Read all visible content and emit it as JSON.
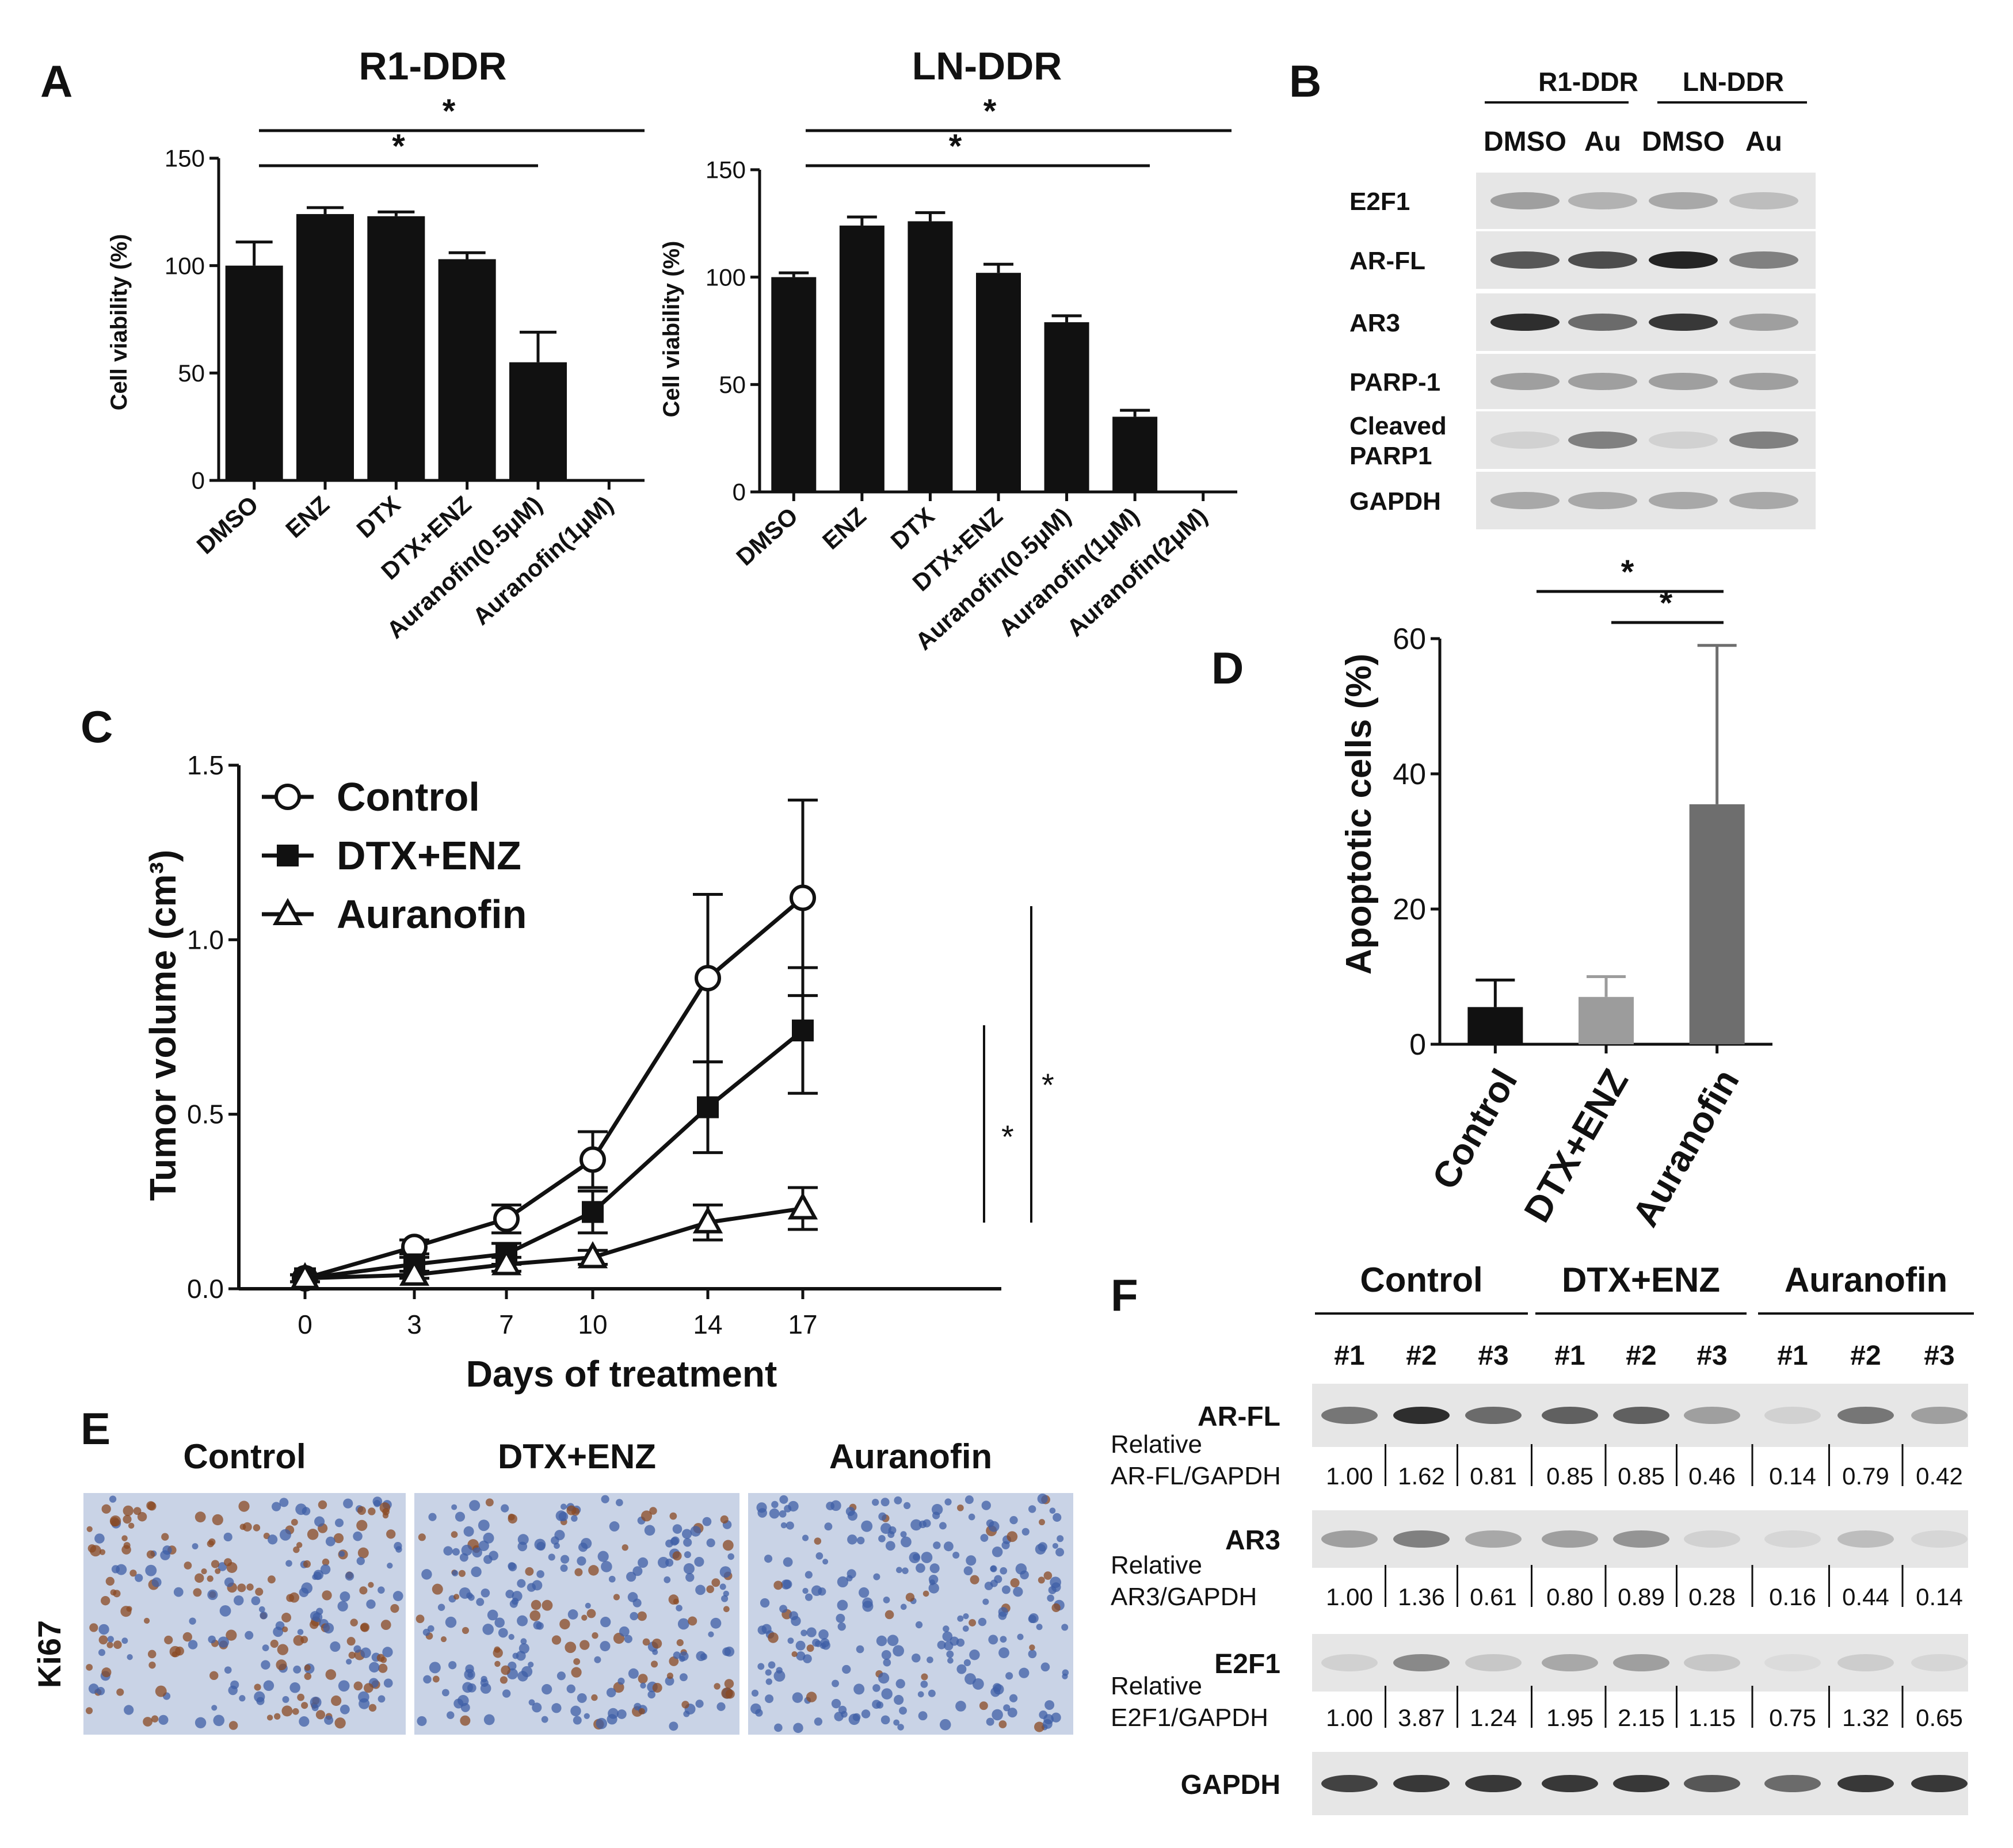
{
  "colors": {
    "ink": "#111111",
    "bar_black": "#111111",
    "bar_light_gray": "#9c9c9c",
    "bar_mid_gray": "#6e6e6e",
    "blot_bg": "#e6e6e6",
    "blot_band": "#222222",
    "ihc_bg": "#c9d3e6",
    "ihc_blue": "#3f5fa6",
    "ihc_brown": "#8a4a23"
  },
  "panels": {
    "A": "A",
    "B": "B",
    "C": "C",
    "D": "D",
    "E": "E",
    "F": "F"
  },
  "stat_marks": {
    "star": "*"
  },
  "chart_data": [
    {
      "type": "bar",
      "panel": "A",
      "title": "R1-DDR",
      "ylabel": "Cell viability (%)",
      "ylim": [
        0,
        150
      ],
      "yticks": [
        "0",
        "50",
        "100",
        "150"
      ],
      "categories": [
        "DMSO",
        "ENZ",
        "DTX",
        "DTX+ENZ",
        "Auranofin(0.5μM)",
        "Auranofin(1μM)"
      ],
      "values": [
        100,
        124,
        123,
        103,
        55,
        0
      ],
      "errors": [
        11,
        3,
        2,
        3,
        14,
        0
      ],
      "color": "#111111",
      "significance": [
        {
          "from": 0,
          "to": 4,
          "label": "*"
        },
        {
          "from": 0,
          "to": 5,
          "label": "*"
        }
      ]
    },
    {
      "type": "bar",
      "panel": "A",
      "title": "LN-DDR",
      "ylabel": "Cell viability (%)",
      "ylim": [
        0,
        150
      ],
      "yticks": [
        "0",
        "50",
        "100",
        "150"
      ],
      "categories": [
        "DMSO",
        "ENZ",
        "DTX",
        "DTX+ENZ",
        "Auranofin(0.5μM)",
        "Auranofin(1μM)",
        "Auranofin(2μM)"
      ],
      "values": [
        100,
        124,
        126,
        102,
        79,
        35,
        0
      ],
      "errors": [
        2,
        4,
        4,
        4,
        3,
        3,
        0
      ],
      "color": "#111111",
      "significance": [
        {
          "from": 0,
          "to": 5,
          "label": "*"
        },
        {
          "from": 0,
          "to": 6,
          "label": "*"
        }
      ]
    },
    {
      "type": "line",
      "panel": "C",
      "xlabel": "Days of treatment",
      "ylabel": "Tumor volume (cm³)",
      "x": [
        0,
        3,
        7,
        10,
        14,
        17
      ],
      "xticks": [
        "0",
        "3",
        "7",
        "10",
        "14",
        "17"
      ],
      "ylim": [
        0,
        1.5
      ],
      "yticks": [
        "0.0",
        "0.5",
        "1.0",
        "1.5"
      ],
      "legend_position": "top-left",
      "series": [
        {
          "name": "Control",
          "marker": "open-circle",
          "values": [
            0.03,
            0.12,
            0.2,
            0.37,
            0.89,
            1.12
          ],
          "errors": [
            0.01,
            0.02,
            0.04,
            0.08,
            0.24,
            0.28
          ]
        },
        {
          "name": "DTX+ENZ",
          "marker": "filled-square",
          "values": [
            0.03,
            0.07,
            0.1,
            0.22,
            0.52,
            0.74
          ],
          "errors": [
            0.01,
            0.02,
            0.03,
            0.06,
            0.13,
            0.18
          ]
        },
        {
          "name": "Auranofin",
          "marker": "open-triangle",
          "values": [
            0.03,
            0.04,
            0.07,
            0.09,
            0.19,
            0.23
          ],
          "errors": [
            0.01,
            0.01,
            0.02,
            0.02,
            0.05,
            0.06
          ]
        }
      ],
      "significance": [
        {
          "label": "*"
        },
        {
          "label": "*"
        }
      ]
    },
    {
      "type": "bar",
      "panel": "D",
      "ylabel": "Apoptotic cells (%)",
      "ylim": [
        0,
        60
      ],
      "yticks": [
        "0",
        "20",
        "40",
        "60"
      ],
      "categories": [
        "Control",
        "DTX+ENZ",
        "Auranofin"
      ],
      "values": [
        5.5,
        7,
        35.5
      ],
      "errors": [
        4,
        3,
        23.5
      ],
      "colors": [
        "#111111",
        "#9c9c9c",
        "#6e6e6e"
      ],
      "significance": [
        {
          "from": 0,
          "to": 2,
          "label": "*"
        },
        {
          "from": 1,
          "to": 2,
          "label": "*"
        }
      ]
    }
  ],
  "blot_B": {
    "cell_lines": [
      "R1-DDR",
      "LN-DDR"
    ],
    "treatments": [
      "DMSO",
      "Au",
      "DMSO",
      "Au"
    ],
    "rows": [
      {
        "label": "E2F1",
        "intensities": [
          0.35,
          0.25,
          0.3,
          0.2
        ]
      },
      {
        "label": "AR-FL",
        "intensities": [
          0.7,
          0.75,
          0.95,
          0.5
        ]
      },
      {
        "label": "AR3",
        "intensities": [
          0.9,
          0.6,
          0.85,
          0.35
        ]
      },
      {
        "label": "PARP-1",
        "intensities": [
          0.35,
          0.35,
          0.35,
          0.35
        ]
      },
      {
        "label": "Cleaved\nPARP1",
        "label_line1": "Cleaved",
        "label_line2": "PARP1",
        "intensities": [
          0.1,
          0.5,
          0.1,
          0.5
        ]
      },
      {
        "label": "GAPDH",
        "intensities": [
          0.3,
          0.3,
          0.3,
          0.3
        ]
      }
    ]
  },
  "ihc_E": {
    "groups": [
      "Control",
      "DTX+ENZ",
      "Auranofin"
    ],
    "stain": "Ki67",
    "brown_density": [
      0.6,
      0.3,
      0.12
    ]
  },
  "blot_F": {
    "groups": [
      "Control",
      "DTX+ENZ",
      "Auranofin"
    ],
    "replicates": [
      "#1",
      "#2",
      "#3",
      "#1",
      "#2",
      "#3",
      "#1",
      "#2",
      "#3"
    ],
    "relative_word": "Relative",
    "rows": [
      {
        "label": "AR-FL",
        "quant_label": "AR-FL/GAPDH",
        "quant": [
          "1.00",
          "1.62",
          "0.81",
          "0.85",
          "0.85",
          "0.46",
          "0.14",
          "0.79",
          "0.42"
        ],
        "intensities": [
          0.55,
          0.9,
          0.6,
          0.65,
          0.65,
          0.35,
          0.1,
          0.55,
          0.35
        ]
      },
      {
        "label": "AR3",
        "quant_label": "AR3/GAPDH",
        "quant": [
          "1.00",
          "1.36",
          "0.61",
          "0.80",
          "0.89",
          "0.28",
          "0.16",
          "0.44",
          "0.14"
        ],
        "intensities": [
          0.35,
          0.5,
          0.3,
          0.35,
          0.4,
          0.1,
          0.08,
          0.2,
          0.08
        ]
      },
      {
        "label": "E2F1",
        "quant_label": "E2F1/GAPDH",
        "quant": [
          "1.00",
          "3.87",
          "1.24",
          "1.95",
          "2.15",
          "1.15",
          "0.75",
          "1.32",
          "0.65"
        ],
        "intensities": [
          0.1,
          0.45,
          0.15,
          0.3,
          0.35,
          0.15,
          0.05,
          0.12,
          0.08
        ]
      },
      {
        "label": "GAPDH",
        "quant_label": "",
        "quant": [],
        "intensities": [
          0.8,
          0.85,
          0.85,
          0.85,
          0.85,
          0.7,
          0.6,
          0.85,
          0.85
        ]
      }
    ]
  }
}
